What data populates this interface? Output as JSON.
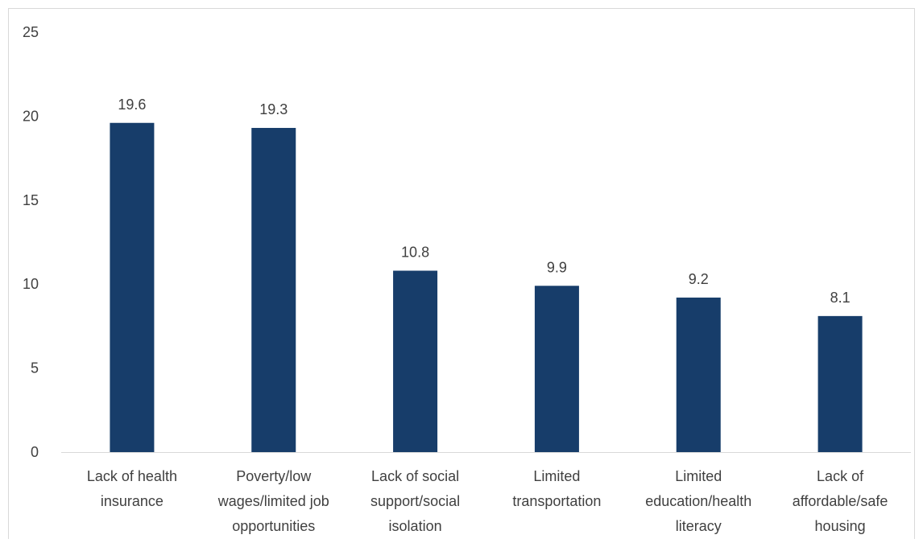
{
  "chart_data": {
    "type": "bar",
    "title": "",
    "xlabel": "",
    "ylabel": "",
    "categories": [
      [
        "Lack of health",
        "insurance"
      ],
      [
        "Poverty/low",
        "wages/limited job",
        "opportunities"
      ],
      [
        "Lack of social",
        "support/social",
        "isolation"
      ],
      [
        "Limited",
        "transportation"
      ],
      [
        "Limited",
        "education/health",
        "literacy"
      ],
      [
        "Lack of",
        "affordable/safe",
        "housing"
      ]
    ],
    "values": [
      19.6,
      19.3,
      10.8,
      9.9,
      9.2,
      8.1
    ],
    "data_labels": [
      "19.6",
      "19.3",
      "10.8",
      "9.9",
      "9.2",
      "8.1"
    ],
    "ylim": [
      0,
      25
    ],
    "yticks": [
      "0",
      "5",
      "10",
      "15",
      "20",
      "25"
    ],
    "grid": false,
    "legend": "none",
    "bar_color": "#173D6A",
    "axis_color": "#d9d9d9"
  }
}
